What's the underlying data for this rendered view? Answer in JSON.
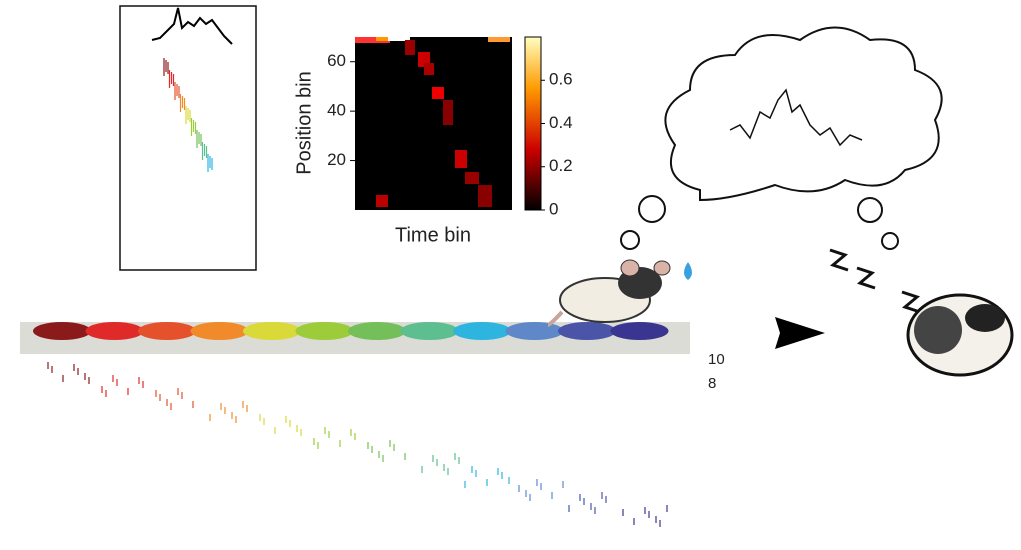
{
  "heatmap": {
    "ylabel": "Position bin",
    "xlabel": "Time bin",
    "ylim": [
      0,
      70
    ],
    "yticks": [
      20,
      40,
      60
    ],
    "colorbar_lim": [
      0,
      0.8
    ],
    "colorbar_ticks": [
      0,
      0.2,
      0.4,
      0.6
    ]
  },
  "track_labels": [
    "10",
    "8"
  ]
}
